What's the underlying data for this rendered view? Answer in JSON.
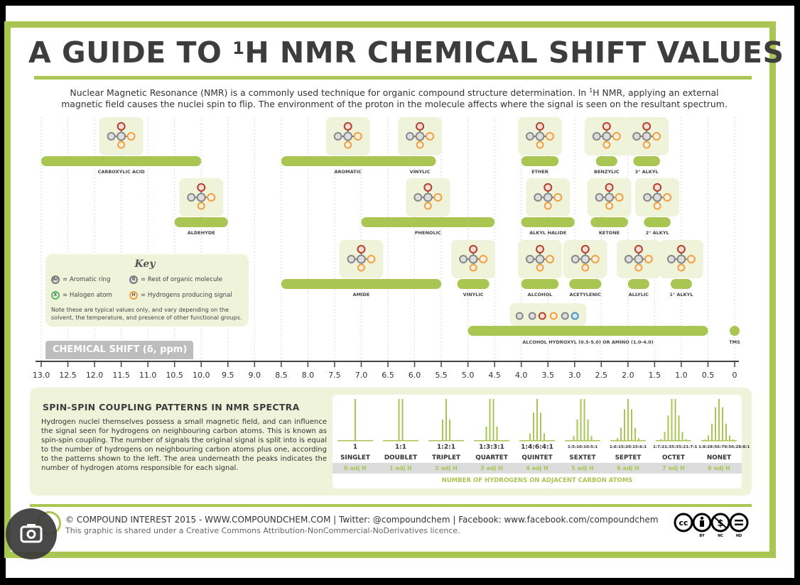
{
  "title": {
    "prefix": "A GUIDE TO ",
    "sup": "1",
    "suffix": "H NMR CHEMICAL SHIFT VALUES"
  },
  "intro": {
    "line1_a": "Nuclear Magnetic Resonance (NMR) is a commonly used technique for organic compound structure determination. In ",
    "line1_sup": "1",
    "line1_b": "H NMR, applying an external",
    "line2": "magnetic field causes the nuclei spin to flip. The environment of the proton in the molecule affects where the signal is seen on the resultant spectrum."
  },
  "key": {
    "title": "Key",
    "items": [
      {
        "letter": "Ar",
        "text": "= Aromatic ring",
        "color": "#888888"
      },
      {
        "letter": "R",
        "text": "= Rest of organic molecule",
        "color": "#888888"
      },
      {
        "letter": "X",
        "text": "= Halogen atom",
        "color": "#5cb85c"
      },
      {
        "letter": "H",
        "text": "= Hydrogens producing signal",
        "color": "#f0a040"
      }
    ],
    "note": "Note these are typical values only, and vary depending on the solvent, the temperature, and presence of other functional groups."
  },
  "axis": {
    "label": "CHEMICAL SHIFT (δ, ppm)",
    "ticks": [
      "13.0",
      "12.5",
      "12.0",
      "11.5",
      "11.0",
      "10.5",
      "10.0",
      "9.5",
      "9.0",
      "8.5",
      "8.0",
      "7.5",
      "7.0",
      "6.5",
      "6.0",
      "5.5",
      "5.0",
      "4.5",
      "4.0",
      "3.5",
      "3.0",
      "2.5",
      "2.0",
      "1.5",
      "1.0",
      "0.5",
      "0"
    ]
  },
  "ranges": [
    {
      "label": "CARBOXYLIC ACID",
      "from": 13.0,
      "to": 10.0,
      "row": 0
    },
    {
      "label": "AROMATIC",
      "from": 8.5,
      "to": 6.0,
      "row": 0
    },
    {
      "label": "VINYLIC",
      "from": 6.2,
      "to": 5.6,
      "row": 0
    },
    {
      "label": "ETHER",
      "from": 4.0,
      "to": 3.3,
      "row": 0
    },
    {
      "label": "BENZYLIC",
      "from": 2.6,
      "to": 2.2,
      "row": 0
    },
    {
      "label": "3° ALKYL",
      "from": 1.9,
      "to": 1.4,
      "row": 0
    },
    {
      "label": "ALDEHYDE",
      "from": 10.5,
      "to": 9.5,
      "row": 1
    },
    {
      "label": "PHENOLIC",
      "from": 7.0,
      "to": 4.5,
      "row": 1
    },
    {
      "label": "ALKYL HALIDE",
      "from": 4.0,
      "to": 3.0,
      "row": 1
    },
    {
      "label": "KETONE",
      "from": 2.7,
      "to": 2.0,
      "row": 1
    },
    {
      "label": "2° ALKYL",
      "from": 1.7,
      "to": 1.2,
      "row": 1
    },
    {
      "label": "AMIDE",
      "from": 8.5,
      "to": 5.5,
      "row": 2
    },
    {
      "label": "VINYLIC",
      "from": 5.2,
      "to": 4.6,
      "row": 2
    },
    {
      "label": "ALCOHOL",
      "from": 4.0,
      "to": 3.3,
      "row": 2
    },
    {
      "label": "ACETYLENIC",
      "from": 3.1,
      "to": 2.5,
      "row": 2
    },
    {
      "label": "ALLYLIC",
      "from": 2.0,
      "to": 1.6,
      "row": 2
    },
    {
      "label": "1° ALKYL",
      "from": 1.2,
      "to": 0.8,
      "row": 2
    },
    {
      "label": "ALCOHOL HYDROXYL (0.5-5.0) OR AMINO (1.0-4.0)",
      "from": 5.0,
      "to": 0.5,
      "row": 3
    },
    {
      "label": "TMS",
      "from": 0.0,
      "to": 0.0,
      "row": 3
    }
  ],
  "spin": {
    "title": "SPIN-SPIN COUPLING PATTERNS IN NMR SPECTRA",
    "body": "Hydrogen nuclei themselves possess a small magnetic field, and can influence the signal seen for hydrogens on neighbouring carbon atoms. This is known as spin-spin coupling. The number of signals the original signal is split into is equal to the number of hydrogens on neighbouring carbon atoms plus one, according to the patterns shown to the left. The area underneath the peaks indicates the number of hydrogen atoms responsible for each signal.",
    "patterns": [
      {
        "ratio": "1",
        "name": "SINGLET",
        "adj": "0 adj H",
        "peaks": [
          1
        ]
      },
      {
        "ratio": "1:1",
        "name": "DOUBLET",
        "adj": "1 adj H",
        "peaks": [
          1,
          1
        ]
      },
      {
        "ratio": "1:2:1",
        "name": "TRIPLET",
        "adj": "2 adj H",
        "peaks": [
          1,
          2,
          1
        ]
      },
      {
        "ratio": "1:3:3:1",
        "name": "QUARTET",
        "adj": "3 adj H",
        "peaks": [
          1,
          3,
          3,
          1
        ]
      },
      {
        "ratio": "1:4:6:4:1",
        "name": "QUINTET",
        "adj": "4 adj H",
        "peaks": [
          1,
          4,
          6,
          4,
          1
        ]
      },
      {
        "ratio": "1:5:10:10:5:1",
        "name": "SEXTET",
        "adj": "5 adj H",
        "peaks": [
          1,
          5,
          10,
          10,
          5,
          1
        ]
      },
      {
        "ratio": "1:6:15:20:15:6:1",
        "name": "SEPTET",
        "adj": "6 adj H",
        "peaks": [
          1,
          6,
          15,
          20,
          15,
          6,
          1
        ]
      },
      {
        "ratio": "1:7:21:35:35:21:7:1",
        "name": "OCTET",
        "adj": "7 adj H",
        "peaks": [
          1,
          7,
          21,
          35,
          35,
          21,
          7,
          1
        ]
      },
      {
        "ratio": "1:8:28:56:70:56:28:8:1",
        "name": "NONET",
        "adj": "8 adj H",
        "peaks": [
          1,
          8,
          28,
          56,
          70,
          56,
          28,
          8,
          1
        ]
      }
    ],
    "caption": "NUMBER OF HYDROGENS ON ADJACENT CARBON ATOMS"
  },
  "footer": {
    "line1": "© COMPOUND INTEREST 2015 - WWW.COMPOUNDCHEM.COM | Twitter: @compoundchem | Facebook: www.facebook.com/compoundchem",
    "line2": "This graphic is shared under a Creative Commons Attribution-NonCommercial-NoDerivatives licence.",
    "cc_labels": [
      "BY",
      "NC",
      "ND"
    ]
  },
  "colors": {
    "accent": "#a9c653",
    "panel": "#eef3d9",
    "hydrogen": "#f0a040",
    "oxygen": "#b5402a",
    "nitrogen": "#4a90c0",
    "halogen": "#5cb85c",
    "carbon": "#888888"
  }
}
